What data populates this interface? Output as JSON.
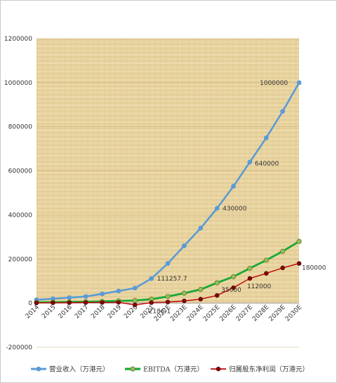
{
  "chart_data": {
    "type": "line",
    "title": "",
    "xlabel": "",
    "ylabel": "",
    "ylim": [
      -200000,
      1200000
    ],
    "yticks": [
      -200000,
      0,
      200000,
      400000,
      600000,
      800000,
      1000000,
      1200000
    ],
    "ytick_labels": [
      "-200000",
      "0",
      "200000",
      "400000",
      "600000",
      "800000",
      "1000000",
      "1200000"
    ],
    "categories": [
      "2014",
      "2015",
      "2016",
      "2017",
      "2018",
      "2019",
      "2020",
      "2021",
      "2022E",
      "2023E",
      "2024E",
      "2025E",
      "2026E",
      "2027E",
      "2028E",
      "2029E",
      "2030E"
    ],
    "grid": true,
    "legend_position": "bottom",
    "series": [
      {
        "name": "营业收入（万港元）",
        "color": "#5b9bd5",
        "values": [
          15000,
          20000,
          25000,
          30000,
          42000,
          55000,
          68000,
          111257.7,
          180000,
          260000,
          340000,
          430000,
          530000,
          640000,
          750000,
          870000,
          1000000
        ]
      },
      {
        "name": "EBITDA（万港元）",
        "color": "#17a937",
        "marker_fill": "#9bbb59",
        "values": [
          3000,
          4000,
          5000,
          6000,
          8000,
          10000,
          12000,
          18000,
          30000,
          45000,
          62000,
          92000,
          120000,
          158000,
          195000,
          235000,
          280000
        ]
      },
      {
        "name": "归属股东净利润（万港元）",
        "color": "#c00000",
        "marker_fill": "#8b0000",
        "values": [
          1000,
          1500,
          2000,
          2500,
          3000,
          3500,
          -8000,
          2186.1,
          5000,
          10000,
          18000,
          35000,
          70000,
          112000,
          135000,
          160000,
          180000
        ]
      }
    ],
    "data_labels": [
      {
        "series": 0,
        "index": 7,
        "text": "111257.7"
      },
      {
        "series": 0,
        "index": 11,
        "text": "430000"
      },
      {
        "series": 0,
        "index": 13,
        "text": "640000"
      },
      {
        "series": 0,
        "index": 16,
        "text": "1000000"
      },
      {
        "series": 2,
        "index": 7,
        "text": "2186.1"
      },
      {
        "series": 2,
        "index": 11,
        "text": "35000"
      },
      {
        "series": 2,
        "index": 13,
        "text": "112000"
      },
      {
        "series": 2,
        "index": 16,
        "text": "180000"
      }
    ],
    "background": {
      "texture": "papyrus",
      "color": "#ecd9a8"
    }
  }
}
